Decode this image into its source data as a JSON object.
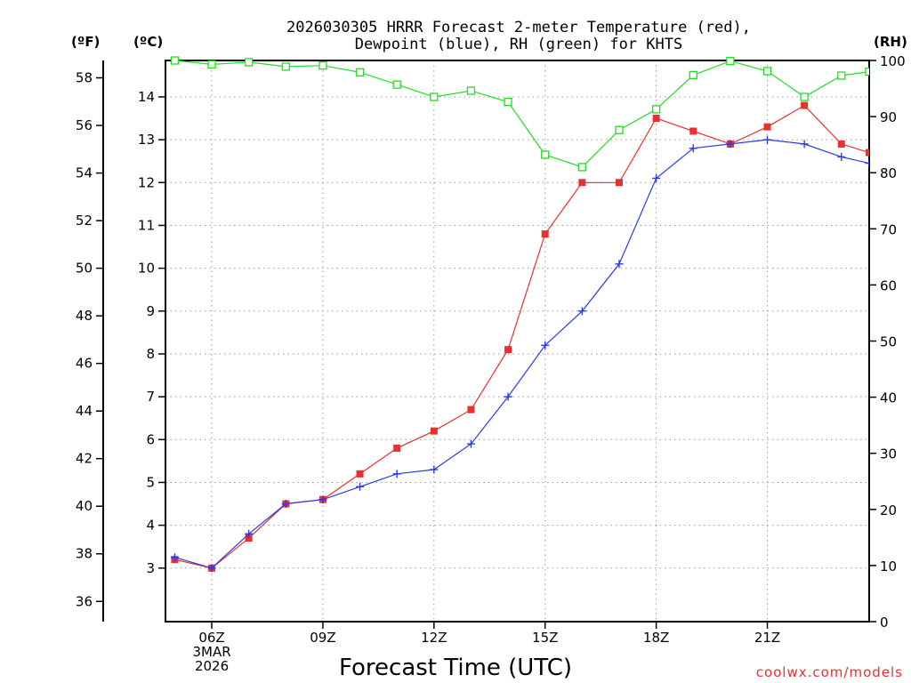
{
  "chart_data": {
    "type": "line",
    "title_lines": [
      "2026030305 HRRR Forecast 2-meter Temperature (red),",
      "Dewpoint (blue), RH (green) for KHTS"
    ],
    "xlabel": "Forecast Time (UTC)",
    "credit": "coolwx.com/models",
    "units": {
      "fahrenheit": "(ºF)",
      "celsius": "(ºC)",
      "rh": "(RH)"
    },
    "x_range": [
      4.75,
      23.75
    ],
    "x_ticks": [
      {
        "x": 6,
        "lines": [
          "06Z",
          "3MAR",
          "2026"
        ]
      },
      {
        "x": 9,
        "lines": [
          "09Z"
        ]
      },
      {
        "x": 12,
        "lines": [
          "12Z"
        ]
      },
      {
        "x": 15,
        "lines": [
          "15Z"
        ]
      },
      {
        "x": 18,
        "lines": [
          "18Z"
        ]
      },
      {
        "x": 21,
        "lines": [
          "21Z"
        ]
      }
    ],
    "x_grid": [
      6,
      9,
      12,
      15,
      18,
      21
    ],
    "celsius_axis": {
      "range": [
        1.75,
        14.85
      ],
      "ticks": [
        3,
        4,
        5,
        6,
        7,
        8,
        9,
        10,
        11,
        12,
        13,
        14
      ]
    },
    "fahrenheit_axis": {
      "range": [
        35.15,
        58.73
      ],
      "ticks": [
        36,
        38,
        40,
        42,
        44,
        46,
        48,
        50,
        52,
        54,
        56,
        58
      ]
    },
    "rh_axis": {
      "range": [
        0,
        100
      ],
      "ticks": [
        0,
        10,
        20,
        30,
        40,
        50,
        60,
        70,
        80,
        90,
        100
      ]
    },
    "x": [
      5,
      6,
      7,
      8,
      9,
      10,
      11,
      12,
      13,
      14,
      15,
      16,
      17,
      18,
      19,
      20,
      21,
      22,
      23,
      23.75
    ],
    "series": [
      {
        "name": "Temperature",
        "units": "°C",
        "axis": "celsius",
        "color": "#e8302f",
        "marker": "filled-square",
        "values": [
          3.2,
          3.0,
          3.7,
          4.5,
          4.6,
          5.2,
          5.8,
          6.2,
          6.7,
          8.1,
          10.8,
          12.0,
          12.0,
          13.5,
          13.2,
          12.9,
          13.3,
          13.8,
          12.9,
          12.7
        ]
      },
      {
        "name": "Dewpoint",
        "units": "°C",
        "axis": "celsius",
        "color": "#2a3be8",
        "marker": "plus",
        "values": [
          3.25,
          3.0,
          3.8,
          4.5,
          4.6,
          4.9,
          5.2,
          5.3,
          5.9,
          7.0,
          8.2,
          9.0,
          10.1,
          12.1,
          12.8,
          12.9,
          13.0,
          12.9,
          12.6,
          12.45
        ]
      },
      {
        "name": "RH",
        "units": "%",
        "axis": "rh",
        "color": "#22dd22",
        "marker": "open-square",
        "values": [
          100,
          99.3,
          99.7,
          98.9,
          99.1,
          97.9,
          95.7,
          93.5,
          94.6,
          92.6,
          83.2,
          81.0,
          87.6,
          91.3,
          97.4,
          99.9,
          98.1,
          93.5,
          97.3,
          98
        ]
      }
    ]
  }
}
